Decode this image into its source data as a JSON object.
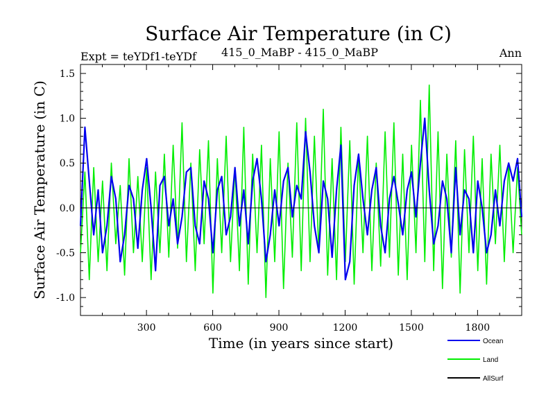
{
  "chart_data": {
    "type": "line",
    "title": "Surface Air Temperature (in C)",
    "subtitle_left": "Expt = teYDf1-teYDf",
    "subtitle_center": "415_0_MaBP - 415_0_MaBP",
    "subtitle_right": "Ann",
    "xlabel": "Time (in years since start)",
    "ylabel": "Surface Air Temperature (in C)",
    "xlim": [
      1,
      2000
    ],
    "ylim": [
      -1.2,
      1.6
    ],
    "x_ticks": [
      300,
      600,
      900,
      1200,
      1500,
      1800
    ],
    "x_tick_labels": [
      "300",
      "600",
      "900",
      "1200",
      "1500",
      "1800"
    ],
    "y_ticks": [
      -1.0,
      -0.5,
      0.0,
      0.5,
      1.0,
      1.5
    ],
    "y_tick_labels": [
      "-1.0",
      "-0.5",
      "0.0",
      "0.5",
      "1.0",
      "1.5"
    ],
    "reference_line": 0.0,
    "series": [
      {
        "name": "Land",
        "color": "#00ee00",
        "x": [
          1,
          21,
          41,
          61,
          81,
          101,
          121,
          141,
          161,
          181,
          201,
          221,
          241,
          261,
          281,
          301,
          321,
          341,
          361,
          381,
          401,
          421,
          441,
          461,
          481,
          501,
          521,
          541,
          561,
          581,
          601,
          621,
          641,
          661,
          681,
          701,
          721,
          741,
          761,
          781,
          801,
          821,
          841,
          861,
          881,
          901,
          921,
          941,
          961,
          981,
          1001,
          1021,
          1041,
          1061,
          1081,
          1101,
          1121,
          1141,
          1161,
          1181,
          1201,
          1221,
          1241,
          1261,
          1281,
          1301,
          1321,
          1341,
          1361,
          1381,
          1401,
          1421,
          1441,
          1461,
          1481,
          1501,
          1521,
          1541,
          1561,
          1581,
          1601,
          1621,
          1641,
          1661,
          1681,
          1701,
          1721,
          1741,
          1761,
          1781,
          1801,
          1821,
          1841,
          1861,
          1881,
          1901,
          1921,
          1941,
          1961,
          1981,
          2000
        ],
        "values": [
          -0.5,
          0.4,
          -0.8,
          0.45,
          -0.6,
          0.3,
          -0.7,
          0.5,
          -0.4,
          0.25,
          -0.75,
          0.55,
          -0.5,
          0.35,
          -0.6,
          0.45,
          -0.8,
          0.4,
          -0.5,
          0.6,
          -0.55,
          0.7,
          -0.45,
          0.95,
          -0.6,
          0.5,
          -0.7,
          0.65,
          -0.4,
          0.75,
          -0.95,
          0.55,
          -0.5,
          0.8,
          -0.6,
          0.45,
          -0.7,
          0.9,
          -0.85,
          0.6,
          -0.5,
          0.7,
          -1.0,
          0.55,
          -0.6,
          0.85,
          -0.9,
          0.5,
          -0.55,
          0.95,
          -0.7,
          1.0,
          -0.6,
          0.8,
          -0.5,
          1.1,
          -0.75,
          0.55,
          -0.8,
          0.9,
          -0.6,
          0.75,
          -0.85,
          0.6,
          -0.5,
          0.8,
          -0.7,
          0.5,
          -0.65,
          0.85,
          -0.55,
          0.95,
          -0.75,
          0.6,
          -0.8,
          0.7,
          -0.5,
          1.2,
          -0.6,
          1.37,
          -0.7,
          0.85,
          -0.9,
          0.6,
          -0.55,
          0.75,
          -0.95,
          0.65,
          -0.5,
          0.8,
          -0.7,
          0.55,
          -0.85,
          0.6,
          -0.4,
          0.7,
          -0.6,
          0.5,
          -0.5,
          0.45,
          -0.3
        ]
      },
      {
        "name": "Ocean",
        "color": "#0000ee",
        "x": [
          1,
          21,
          41,
          61,
          81,
          101,
          121,
          141,
          161,
          181,
          201,
          221,
          241,
          261,
          281,
          301,
          321,
          341,
          361,
          381,
          401,
          421,
          441,
          461,
          481,
          501,
          521,
          541,
          561,
          581,
          601,
          621,
          641,
          661,
          681,
          701,
          721,
          741,
          761,
          781,
          801,
          821,
          841,
          861,
          881,
          901,
          921,
          941,
          961,
          981,
          1001,
          1021,
          1041,
          1061,
          1081,
          1101,
          1121,
          1141,
          1161,
          1181,
          1201,
          1221,
          1241,
          1261,
          1281,
          1301,
          1321,
          1341,
          1361,
          1381,
          1401,
          1421,
          1441,
          1461,
          1481,
          1501,
          1521,
          1541,
          1561,
          1581,
          1601,
          1621,
          1641,
          1661,
          1681,
          1701,
          1721,
          1741,
          1761,
          1781,
          1801,
          1821,
          1841,
          1861,
          1881,
          1901,
          1921,
          1941,
          1961,
          1981,
          2000
        ],
        "values": [
          -0.2,
          0.9,
          0.3,
          -0.3,
          0.2,
          -0.5,
          -0.2,
          0.35,
          0.1,
          -0.6,
          -0.3,
          0.25,
          0.1,
          -0.45,
          0.2,
          0.55,
          0.0,
          -0.7,
          0.25,
          0.35,
          -0.2,
          0.1,
          -0.4,
          -0.1,
          0.4,
          0.45,
          -0.2,
          -0.4,
          0.3,
          0.1,
          -0.5,
          0.2,
          0.35,
          -0.3,
          -0.1,
          0.45,
          -0.2,
          0.2,
          -0.4,
          0.3,
          0.55,
          0.1,
          -0.6,
          -0.3,
          0.2,
          -0.2,
          0.3,
          0.45,
          -0.1,
          0.25,
          0.1,
          0.85,
          0.4,
          -0.2,
          -0.5,
          0.3,
          0.1,
          -0.55,
          0.2,
          0.7,
          -0.8,
          -0.6,
          0.25,
          0.6,
          0.1,
          -0.3,
          0.2,
          0.45,
          -0.2,
          -0.5,
          0.1,
          0.35,
          0.05,
          -0.3,
          0.2,
          0.4,
          -0.1,
          0.5,
          1.0,
          0.2,
          -0.4,
          -0.2,
          0.3,
          0.1,
          -0.5,
          0.45,
          -0.3,
          0.2,
          0.1,
          -0.5,
          0.3,
          0.0,
          -0.5,
          -0.3,
          0.2,
          -0.2,
          0.3,
          0.5,
          0.3,
          0.55,
          -0.1
        ]
      },
      {
        "name": "AllSurf",
        "color": "#000000",
        "x": [],
        "values": []
      }
    ],
    "legend_position": "bottom-right"
  }
}
